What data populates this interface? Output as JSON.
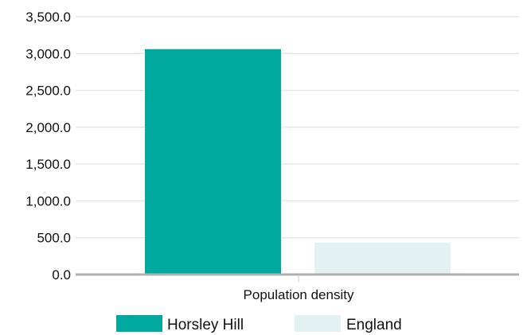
{
  "chart_data": {
    "type": "bar",
    "categories": [
      "Population density"
    ],
    "series": [
      {
        "name": "Horsley Hill",
        "values": [
          3060
        ],
        "color": "#00a99d"
      },
      {
        "name": "England",
        "values": [
          434
        ],
        "color": "#e2f2f2"
      }
    ],
    "y_ticks": [
      "0.0",
      "500.0",
      "1,000.0",
      "1,500.0",
      "2,000.0",
      "2,500.0",
      "3,000.0",
      "3,500.0"
    ],
    "ylim": [
      0,
      3500
    ],
    "grid": true,
    "legend_position": "bottom",
    "colors": {
      "gridline": "#e6e6e6",
      "baseline": "#b0b0b0"
    }
  }
}
